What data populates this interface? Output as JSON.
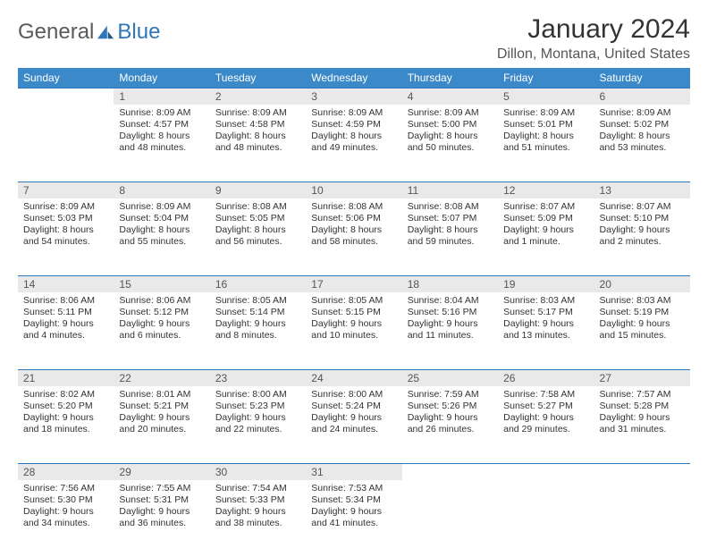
{
  "brand": {
    "part1": "General",
    "part2": "Blue"
  },
  "title": "January 2024",
  "location": "Dillon, Montana, United States",
  "colors": {
    "header_bg": "#3b89c8",
    "header_text": "#ffffff",
    "daynum_bg": "#e9e9e9",
    "border": "#2f77b9",
    "text": "#333333",
    "logo_gray": "#5a5a5a",
    "logo_blue": "#2f77b9"
  },
  "day_names": [
    "Sunday",
    "Monday",
    "Tuesday",
    "Wednesday",
    "Thursday",
    "Friday",
    "Saturday"
  ],
  "weeks": [
    [
      {
        "n": "",
        "sunrise": "",
        "sunset": "",
        "daylight": ""
      },
      {
        "n": "1",
        "sunrise": "8:09 AM",
        "sunset": "4:57 PM",
        "daylight": "8 hours and 48 minutes."
      },
      {
        "n": "2",
        "sunrise": "8:09 AM",
        "sunset": "4:58 PM",
        "daylight": "8 hours and 48 minutes."
      },
      {
        "n": "3",
        "sunrise": "8:09 AM",
        "sunset": "4:59 PM",
        "daylight": "8 hours and 49 minutes."
      },
      {
        "n": "4",
        "sunrise": "8:09 AM",
        "sunset": "5:00 PM",
        "daylight": "8 hours and 50 minutes."
      },
      {
        "n": "5",
        "sunrise": "8:09 AM",
        "sunset": "5:01 PM",
        "daylight": "8 hours and 51 minutes."
      },
      {
        "n": "6",
        "sunrise": "8:09 AM",
        "sunset": "5:02 PM",
        "daylight": "8 hours and 53 minutes."
      }
    ],
    [
      {
        "n": "7",
        "sunrise": "8:09 AM",
        "sunset": "5:03 PM",
        "daylight": "8 hours and 54 minutes."
      },
      {
        "n": "8",
        "sunrise": "8:09 AM",
        "sunset": "5:04 PM",
        "daylight": "8 hours and 55 minutes."
      },
      {
        "n": "9",
        "sunrise": "8:08 AM",
        "sunset": "5:05 PM",
        "daylight": "8 hours and 56 minutes."
      },
      {
        "n": "10",
        "sunrise": "8:08 AM",
        "sunset": "5:06 PM",
        "daylight": "8 hours and 58 minutes."
      },
      {
        "n": "11",
        "sunrise": "8:08 AM",
        "sunset": "5:07 PM",
        "daylight": "8 hours and 59 minutes."
      },
      {
        "n": "12",
        "sunrise": "8:07 AM",
        "sunset": "5:09 PM",
        "daylight": "9 hours and 1 minute."
      },
      {
        "n": "13",
        "sunrise": "8:07 AM",
        "sunset": "5:10 PM",
        "daylight": "9 hours and 2 minutes."
      }
    ],
    [
      {
        "n": "14",
        "sunrise": "8:06 AM",
        "sunset": "5:11 PM",
        "daylight": "9 hours and 4 minutes."
      },
      {
        "n": "15",
        "sunrise": "8:06 AM",
        "sunset": "5:12 PM",
        "daylight": "9 hours and 6 minutes."
      },
      {
        "n": "16",
        "sunrise": "8:05 AM",
        "sunset": "5:14 PM",
        "daylight": "9 hours and 8 minutes."
      },
      {
        "n": "17",
        "sunrise": "8:05 AM",
        "sunset": "5:15 PM",
        "daylight": "9 hours and 10 minutes."
      },
      {
        "n": "18",
        "sunrise": "8:04 AM",
        "sunset": "5:16 PM",
        "daylight": "9 hours and 11 minutes."
      },
      {
        "n": "19",
        "sunrise": "8:03 AM",
        "sunset": "5:17 PM",
        "daylight": "9 hours and 13 minutes."
      },
      {
        "n": "20",
        "sunrise": "8:03 AM",
        "sunset": "5:19 PM",
        "daylight": "9 hours and 15 minutes."
      }
    ],
    [
      {
        "n": "21",
        "sunrise": "8:02 AM",
        "sunset": "5:20 PM",
        "daylight": "9 hours and 18 minutes."
      },
      {
        "n": "22",
        "sunrise": "8:01 AM",
        "sunset": "5:21 PM",
        "daylight": "9 hours and 20 minutes."
      },
      {
        "n": "23",
        "sunrise": "8:00 AM",
        "sunset": "5:23 PM",
        "daylight": "9 hours and 22 minutes."
      },
      {
        "n": "24",
        "sunrise": "8:00 AM",
        "sunset": "5:24 PM",
        "daylight": "9 hours and 24 minutes."
      },
      {
        "n": "25",
        "sunrise": "7:59 AM",
        "sunset": "5:26 PM",
        "daylight": "9 hours and 26 minutes."
      },
      {
        "n": "26",
        "sunrise": "7:58 AM",
        "sunset": "5:27 PM",
        "daylight": "9 hours and 29 minutes."
      },
      {
        "n": "27",
        "sunrise": "7:57 AM",
        "sunset": "5:28 PM",
        "daylight": "9 hours and 31 minutes."
      }
    ],
    [
      {
        "n": "28",
        "sunrise": "7:56 AM",
        "sunset": "5:30 PM",
        "daylight": "9 hours and 34 minutes."
      },
      {
        "n": "29",
        "sunrise": "7:55 AM",
        "sunset": "5:31 PM",
        "daylight": "9 hours and 36 minutes."
      },
      {
        "n": "30",
        "sunrise": "7:54 AM",
        "sunset": "5:33 PM",
        "daylight": "9 hours and 38 minutes."
      },
      {
        "n": "31",
        "sunrise": "7:53 AM",
        "sunset": "5:34 PM",
        "daylight": "9 hours and 41 minutes."
      },
      {
        "n": "",
        "sunrise": "",
        "sunset": "",
        "daylight": ""
      },
      {
        "n": "",
        "sunrise": "",
        "sunset": "",
        "daylight": ""
      },
      {
        "n": "",
        "sunrise": "",
        "sunset": "",
        "daylight": ""
      }
    ]
  ],
  "labels": {
    "sunrise": "Sunrise:",
    "sunset": "Sunset:",
    "daylight": "Daylight:"
  }
}
